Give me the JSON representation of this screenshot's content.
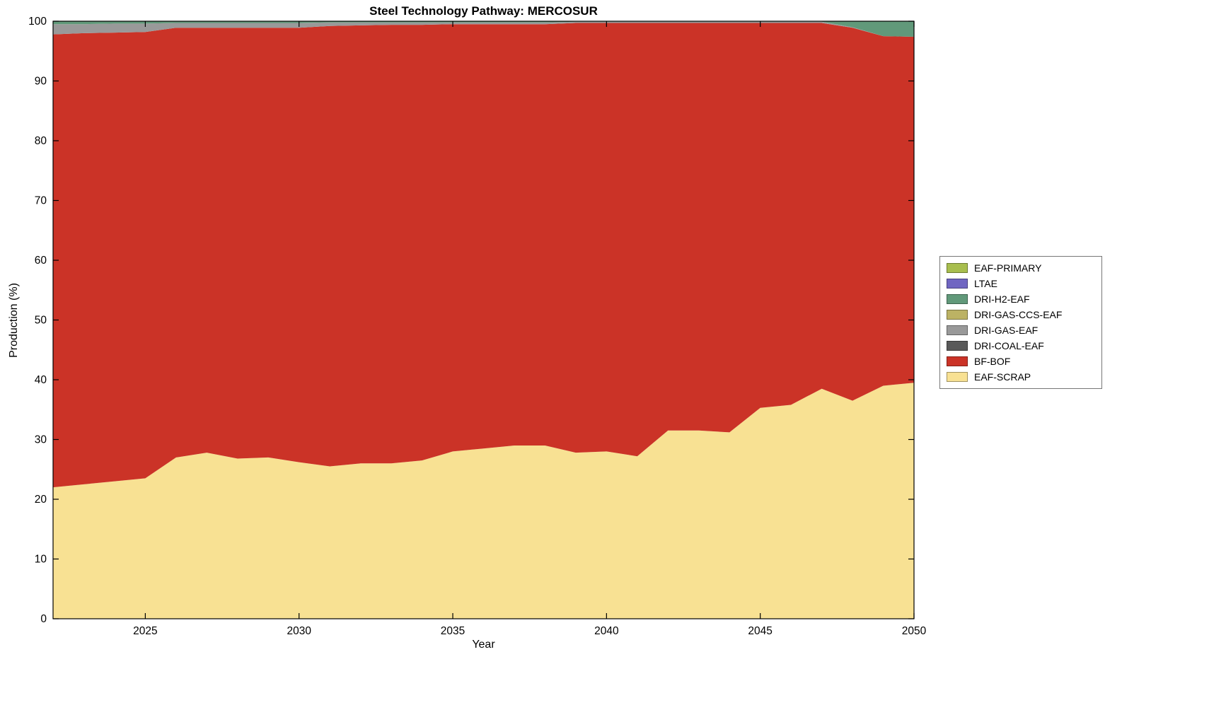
{
  "figure": {
    "title": "Steel Technology Pathway: MERCOSUR",
    "xlabel": "Year",
    "ylabel": "Production (%)"
  },
  "axes": {
    "x_ticks": [
      2025,
      2030,
      2035,
      2040,
      2045,
      2050
    ],
    "y_ticks": [
      0,
      10,
      20,
      30,
      40,
      50,
      60,
      70,
      80,
      90,
      100
    ],
    "x_range": [
      2022,
      2050
    ],
    "y_range": [
      0,
      100
    ]
  },
  "legend": {
    "position": "right-outside",
    "items": [
      {
        "label": "EAF-PRIMARY",
        "color": "#A8BE4E"
      },
      {
        "label": "LTAE",
        "color": "#7066C2"
      },
      {
        "label": "DRI-H2-EAF",
        "color": "#61997A"
      },
      {
        "label": "DRI-GAS-CCS-EAF",
        "color": "#BCB264"
      },
      {
        "label": "DRI-GAS-EAF",
        "color": "#999999"
      },
      {
        "label": "DRI-COAL-EAF",
        "color": "#595959"
      },
      {
        "label": "BF-BOF",
        "color": "#CB3327"
      },
      {
        "label": "EAF-SCRAP",
        "color": "#F8E193"
      }
    ]
  },
  "chart_data": {
    "type": "area",
    "stacked": true,
    "title": "Steel Technology Pathway: MERCOSUR",
    "xlabel": "Year",
    "ylabel": "Production (%)",
    "xlim": [
      2022,
      2050
    ],
    "ylim": [
      0,
      100
    ],
    "grid": false,
    "legend_position": "right-outside",
    "x": [
      2022,
      2023,
      2024,
      2025,
      2026,
      2027,
      2028,
      2029,
      2030,
      2031,
      2032,
      2033,
      2034,
      2035,
      2036,
      2037,
      2038,
      2039,
      2040,
      2041,
      2042,
      2043,
      2044,
      2045,
      2046,
      2047,
      2048,
      2049,
      2050
    ],
    "series": [
      {
        "name": "EAF-SCRAP",
        "color": "#F8E193",
        "values": [
          22.0,
          22.5,
          23.0,
          23.5,
          27.0,
          27.8,
          26.8,
          27.0,
          26.2,
          25.5,
          26.0,
          26.0,
          26.5,
          28.0,
          28.5,
          29.0,
          29.0,
          27.8,
          28.0,
          27.2,
          31.5,
          31.5,
          31.2,
          35.3,
          35.8,
          38.5,
          36.5,
          39.0,
          39.5
        ]
      },
      {
        "name": "BF-BOF",
        "color": "#CB3327",
        "values": [
          75.8,
          75.5,
          75.1,
          74.7,
          71.9,
          71.1,
          72.1,
          71.9,
          72.7,
          73.7,
          73.3,
          73.4,
          72.9,
          71.5,
          71.0,
          70.5,
          70.5,
          71.9,
          71.7,
          72.5,
          68.2,
          68.2,
          68.5,
          64.4,
          63.9,
          61.2,
          62.4,
          58.5,
          57.9
        ]
      },
      {
        "name": "DRI-COAL-EAF",
        "color": "#595959",
        "values": [
          0,
          0,
          0,
          0,
          0,
          0,
          0,
          0,
          0,
          0,
          0,
          0,
          0,
          0,
          0,
          0,
          0,
          0,
          0,
          0,
          0,
          0,
          0,
          0,
          0,
          0,
          0,
          0,
          0
        ]
      },
      {
        "name": "DRI-GAS-EAF",
        "color": "#999999",
        "values": [
          1.7,
          1.5,
          1.5,
          1.4,
          0.8,
          0.8,
          0.8,
          0.8,
          0.8,
          0.6,
          0.5,
          0.4,
          0.4,
          0.3,
          0.3,
          0.3,
          0.3,
          0.2,
          0.2,
          0.2,
          0.2,
          0.2,
          0.2,
          0.2,
          0.2,
          0.2,
          0.1,
          0.0,
          0.0
        ]
      },
      {
        "name": "DRI-GAS-CCS-EAF",
        "color": "#BCB264",
        "values": [
          0,
          0,
          0,
          0,
          0,
          0,
          0,
          0,
          0,
          0,
          0,
          0,
          0,
          0,
          0,
          0,
          0,
          0,
          0,
          0,
          0,
          0,
          0,
          0,
          0,
          0,
          0,
          0,
          0
        ]
      },
      {
        "name": "DRI-H2-EAF",
        "color": "#61997A",
        "values": [
          0.5,
          0.5,
          0.4,
          0.4,
          0.3,
          0.3,
          0.3,
          0.3,
          0.3,
          0.2,
          0.2,
          0.2,
          0.2,
          0.2,
          0.2,
          0.2,
          0.2,
          0.1,
          0.1,
          0.1,
          0.1,
          0.1,
          0.1,
          0.1,
          0.1,
          0.1,
          1.0,
          2.5,
          2.6
        ]
      },
      {
        "name": "LTAE",
        "color": "#7066C2",
        "values": [
          0,
          0,
          0,
          0,
          0,
          0,
          0,
          0,
          0,
          0,
          0,
          0,
          0,
          0,
          0,
          0,
          0,
          0,
          0,
          0,
          0,
          0,
          0,
          0,
          0,
          0,
          0,
          0,
          0
        ]
      },
      {
        "name": "EAF-PRIMARY",
        "color": "#A8BE4E",
        "values": [
          0,
          0,
          0,
          0,
          0,
          0,
          0,
          0,
          0,
          0,
          0,
          0,
          0,
          0,
          0,
          0,
          0,
          0,
          0,
          0,
          0,
          0,
          0,
          0,
          0,
          0,
          0,
          0,
          0
        ]
      }
    ]
  }
}
